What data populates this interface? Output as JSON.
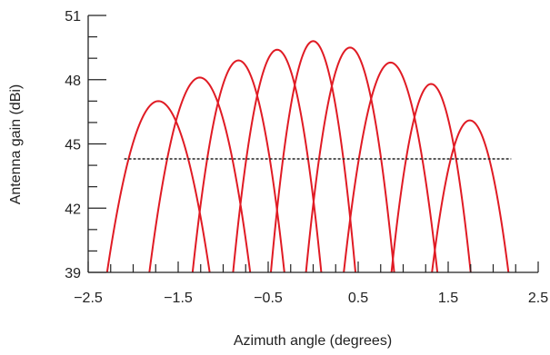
{
  "chart_data": {
    "type": "line",
    "title": "",
    "xlabel": "Azimuth angle (degrees)",
    "ylabel": "Antenna gain (dBi)",
    "xlim": [
      -2.5,
      2.5
    ],
    "ylim": [
      39,
      51
    ],
    "x_ticks": [
      -2.5,
      -1.5,
      -0.5,
      0.5,
      1.5,
      2.5
    ],
    "x_tick_labels": [
      "−2.5",
      "−1.5",
      "−0.5",
      "0.5",
      "1.5",
      "2.5"
    ],
    "y_ticks": [
      39,
      42,
      45,
      48,
      51
    ],
    "y_tick_labels": [
      "39",
      "42",
      "45",
      "48",
      "51"
    ],
    "grid": false,
    "beams": [
      {
        "center": -1.72,
        "peak": 47.0,
        "null_left": -2.29,
        "null_right": -1.15
      },
      {
        "center": -1.26,
        "peak": 48.1,
        "null_left": -1.82,
        "null_right": -0.7
      },
      {
        "center": -0.83,
        "peak": 48.9,
        "null_left": -1.34,
        "null_right": -0.32
      },
      {
        "center": -0.4,
        "peak": 49.4,
        "null_left": -0.89,
        "null_right": 0.09
      },
      {
        "center": 0.0,
        "peak": 49.8,
        "null_left": -0.47,
        "null_right": 0.47
      },
      {
        "center": 0.41,
        "peak": 49.5,
        "null_left": -0.08,
        "null_right": 0.9
      },
      {
        "center": 0.86,
        "peak": 48.8,
        "null_left": 0.34,
        "null_right": 1.38
      },
      {
        "center": 1.31,
        "peak": 47.8,
        "null_left": 0.87,
        "null_right": 1.75
      },
      {
        "center": 1.74,
        "peak": 46.1,
        "null_left": 1.32,
        "null_right": 2.17
      }
    ],
    "threshold_line": {
      "y": 44.3,
      "x_start": -2.1,
      "x_end": 2.2,
      "style": "dotted"
    },
    "colors": {
      "beam": "#e01b24",
      "axis": "#222222",
      "threshold": "#222222"
    }
  }
}
